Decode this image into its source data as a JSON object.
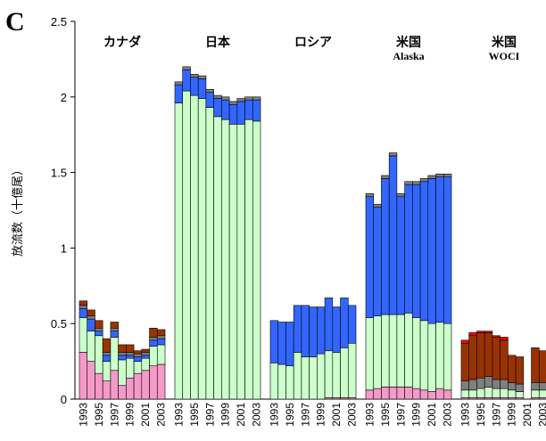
{
  "chart_data": {
    "type": "stacked_bar",
    "panel_label": "C",
    "y_label": "放流数（十億尾）",
    "ylim": [
      0,
      2.5
    ],
    "yticks": [
      0,
      0.5,
      1,
      1.5,
      2,
      2.5
    ],
    "groups": [
      {
        "label": [
          "カナダ"
        ],
        "categories": [
          "1993",
          null,
          "1995",
          null,
          "1997",
          null,
          "1999",
          null,
          "2001",
          null,
          "2003"
        ]
      },
      {
        "label": [
          "日本"
        ],
        "categories": [
          "1993",
          null,
          "1995",
          null,
          "1997",
          null,
          "1999",
          null,
          "2001",
          null,
          "2003"
        ]
      },
      {
        "label": [
          "ロシア"
        ],
        "categories": [
          "1993",
          null,
          "1995",
          null,
          "1997",
          null,
          "1999",
          null,
          "2001",
          null,
          "2003"
        ]
      },
      {
        "label": [
          "米国",
          "Alaska"
        ],
        "categories": [
          "1993",
          null,
          "1995",
          null,
          "1997",
          null,
          "1999",
          null,
          "2001",
          null,
          "2003"
        ]
      },
      {
        "label": [
          "米国",
          "WOCI"
        ],
        "categories": [
          "1993",
          null,
          "1995",
          null,
          "1997",
          null,
          "1999",
          null,
          "2001",
          null,
          "2003"
        ]
      }
    ],
    "series": [
      {
        "color": "#f59ac8",
        "values": [
          0.31,
          0.25,
          0.17,
          0.12,
          0.19,
          0.09,
          0.14,
          0.17,
          0.19,
          0.22,
          0.23,
          0,
          0,
          0,
          0,
          0,
          0,
          0,
          0,
          0,
          0,
          0,
          0,
          0,
          0,
          0,
          0,
          0,
          0,
          0.01,
          0.01,
          0.01,
          0.01,
          0.06,
          0.07,
          0.08,
          0.08,
          0.08,
          0.08,
          0.07,
          0.06,
          0.05,
          0.07,
          0.06,
          0.01,
          0.01,
          0.01,
          0.01,
          0.01,
          0.01,
          0.01,
          0.01,
          null,
          0.01,
          0.01
        ]
      },
      {
        "color": "#ccffcc",
        "values": [
          0.23,
          0.2,
          0.25,
          0.13,
          0.22,
          0.17,
          0.13,
          0.08,
          0.08,
          0.13,
          0.13,
          1.96,
          2.04,
          2.01,
          1.99,
          1.93,
          1.87,
          1.85,
          1.82,
          1.82,
          1.85,
          1.84,
          0.24,
          0.23,
          0.22,
          0.31,
          0.28,
          0.28,
          0.3,
          0.31,
          0.3,
          0.33,
          0.36,
          0.48,
          0.48,
          0.48,
          0.48,
          0.48,
          0.49,
          0.47,
          0.46,
          0.45,
          0.44,
          0.44,
          0.05,
          0.05,
          0.06,
          0.07,
          0.06,
          0.06,
          0.05,
          0.04,
          null,
          0.05,
          0.05
        ]
      },
      {
        "color": "#3366ff",
        "values": [
          0.06,
          0.08,
          0.03,
          0.04,
          0.04,
          0.03,
          0.02,
          0.03,
          0.02,
          0.04,
          0.04,
          0.12,
          0.14,
          0.12,
          0.13,
          0.1,
          0.12,
          0.13,
          0.13,
          0.15,
          0.13,
          0.14,
          0.28,
          0.28,
          0.29,
          0.31,
          0.34,
          0.33,
          0.31,
          0.35,
          0.3,
          0.33,
          0.25,
          0.8,
          0.72,
          0.9,
          1.05,
          0.78,
          0.85,
          0.88,
          0.92,
          0.96,
          0.96,
          0.97,
          0,
          0,
          0,
          0,
          0,
          0,
          0,
          0,
          null,
          0,
          0
        ]
      },
      {
        "color": "#7f7f7f",
        "values": [
          0.02,
          0.02,
          0.02,
          0.02,
          0.02,
          0.02,
          0.02,
          0.02,
          0.02,
          0.02,
          0.02,
          0.02,
          0.02,
          0.02,
          0.02,
          0.02,
          0.02,
          0.02,
          0.02,
          0.02,
          0.02,
          0.02,
          0,
          0,
          0,
          0,
          0,
          0,
          0,
          0,
          0,
          0,
          0,
          0.02,
          0.02,
          0.02,
          0.02,
          0.02,
          0.02,
          0.02,
          0.02,
          0.02,
          0.02,
          0.02,
          0.06,
          0.07,
          0.07,
          0.07,
          0.06,
          0.06,
          0.05,
          0.05,
          null,
          0.05,
          0.05
        ]
      },
      {
        "color": "#993300",
        "values": [
          0.03,
          0.04,
          0.05,
          0.09,
          0.04,
          0.05,
          0.05,
          0.02,
          0.02,
          0.06,
          0.04,
          0,
          0,
          0,
          0,
          0,
          0,
          0,
          0,
          0,
          0,
          0,
          0,
          0,
          0,
          0,
          0,
          0,
          0,
          0,
          0,
          0,
          0,
          0,
          0,
          0,
          0,
          0,
          0,
          0,
          0,
          0,
          0,
          0,
          0.25,
          0.29,
          0.3,
          0.29,
          0.28,
          0.26,
          0.18,
          0.18,
          null,
          0.23,
          0.21
        ]
      },
      {
        "color": "#ff0000",
        "values": [
          0,
          0,
          0,
          0,
          0,
          0,
          0,
          0,
          0,
          0,
          0,
          0,
          0,
          0,
          0,
          0,
          0,
          0,
          0,
          0,
          0,
          0,
          0,
          0,
          0,
          0,
          0,
          0,
          0,
          0,
          0,
          0,
          0,
          0,
          0,
          0,
          0,
          0,
          0,
          0,
          0,
          0,
          0,
          0,
          0.02,
          0.02,
          0.01,
          0.01,
          0.01,
          0.02,
          0,
          0,
          null,
          0,
          0
        ]
      }
    ]
  }
}
